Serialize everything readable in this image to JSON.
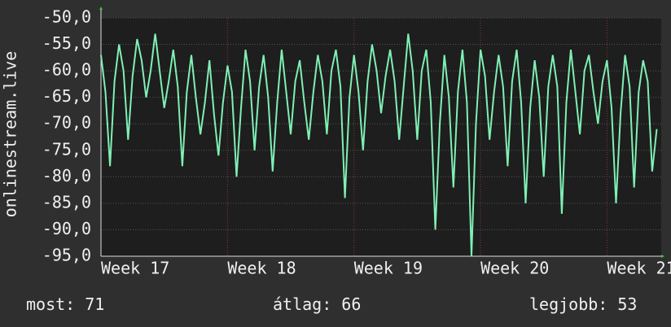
{
  "chart_data": {
    "type": "line",
    "y_label": "onlinestream.live",
    "ylim": [
      -95,
      -50
    ],
    "yticks": [
      {
        "value": -50,
        "label": "-50,0"
      },
      {
        "value": -55,
        "label": "-55,0"
      },
      {
        "value": -60,
        "label": "-60,0"
      },
      {
        "value": -65,
        "label": "-65,0"
      },
      {
        "value": -70,
        "label": "-70,0"
      },
      {
        "value": -75,
        "label": "-75,0"
      },
      {
        "value": -80,
        "label": "-80,0"
      },
      {
        "value": -85,
        "label": "-85,0"
      },
      {
        "value": -90,
        "label": "-90,0"
      },
      {
        "value": -95,
        "label": "-95,0"
      }
    ],
    "xlim": [
      0,
      31
    ],
    "xticks": [
      {
        "value": 0,
        "label": "Week 17"
      },
      {
        "value": 7,
        "label": "Week 18"
      },
      {
        "value": 14,
        "label": "Week 19"
      },
      {
        "value": 21,
        "label": "Week 20"
      },
      {
        "value": 28,
        "label": "Week 21"
      }
    ],
    "grid": true,
    "x": [
      0,
      0.25,
      0.5,
      0.75,
      1,
      1.25,
      1.5,
      1.75,
      2,
      2.25,
      2.5,
      2.75,
      3,
      3.25,
      3.5,
      3.75,
      4,
      4.25,
      4.5,
      4.75,
      5,
      5.25,
      5.5,
      5.75,
      6,
      6.25,
      6.5,
      6.75,
      7,
      7.25,
      7.5,
      7.75,
      8,
      8.25,
      8.5,
      8.75,
      9,
      9.25,
      9.5,
      9.75,
      10,
      10.25,
      10.5,
      10.75,
      11,
      11.25,
      11.5,
      11.75,
      12,
      12.25,
      12.5,
      12.75,
      13,
      13.25,
      13.5,
      13.75,
      14,
      14.25,
      14.5,
      14.75,
      15,
      15.25,
      15.5,
      15.75,
      16,
      16.25,
      16.5,
      16.75,
      17,
      17.25,
      17.5,
      17.75,
      18,
      18.25,
      18.5,
      18.75,
      19,
      19.25,
      19.5,
      19.75,
      20,
      20.25,
      20.5,
      20.75,
      21,
      21.25,
      21.5,
      21.75,
      22,
      22.25,
      22.5,
      22.75,
      23,
      23.25,
      23.5,
      23.75,
      24,
      24.25,
      24.5,
      24.75,
      25,
      25.25,
      25.5,
      25.75,
      26,
      26.25,
      26.5,
      26.75,
      27,
      27.25,
      27.5,
      27.75,
      28,
      28.25,
      28.5,
      28.75,
      29,
      29.25,
      29.5,
      29.75,
      30,
      30.25,
      30.5,
      30.75
    ],
    "series": [
      {
        "name": "onlinestream.live",
        "color": "#7ff0b4",
        "values": [
          -57,
          -64,
          -78,
          -62,
          -55,
          -60,
          -73,
          -61,
          -54,
          -58,
          -65,
          -60,
          -53,
          -60,
          -67,
          -62,
          -56,
          -63,
          -78,
          -64,
          -57,
          -65,
          -72,
          -66,
          -58,
          -68,
          -76,
          -66,
          -59,
          -64,
          -80,
          -67,
          -56,
          -62,
          -75,
          -63,
          -57,
          -65,
          -79,
          -66,
          -56,
          -64,
          -72,
          -62,
          -58,
          -66,
          -73,
          -64,
          -57,
          -62,
          -72,
          -60,
          -56,
          -63,
          -84,
          -65,
          -57,
          -64,
          -75,
          -62,
          -55,
          -60,
          -68,
          -61,
          -56,
          -62,
          -73,
          -63,
          -53,
          -60,
          -73,
          -60,
          -56,
          -66,
          -90,
          -70,
          -57,
          -65,
          -82,
          -64,
          -56,
          -66,
          -95,
          -70,
          -56,
          -61,
          -73,
          -64,
          -57,
          -63,
          -78,
          -62,
          -56,
          -66,
          -85,
          -67,
          -58,
          -65,
          -80,
          -63,
          -57,
          -63,
          -87,
          -66,
          -56,
          -64,
          -72,
          -60,
          -57,
          -64,
          -70,
          -62,
          -58,
          -67,
          -85,
          -68,
          -57,
          -63,
          -82,
          -64,
          -58,
          -62,
          -79,
          -71
        ]
      }
    ],
    "stats": [
      {
        "label": "most:",
        "value": 71
      },
      {
        "label": "átlag:",
        "value": 66
      },
      {
        "label": "legjobb:",
        "value": 53
      }
    ]
  }
}
